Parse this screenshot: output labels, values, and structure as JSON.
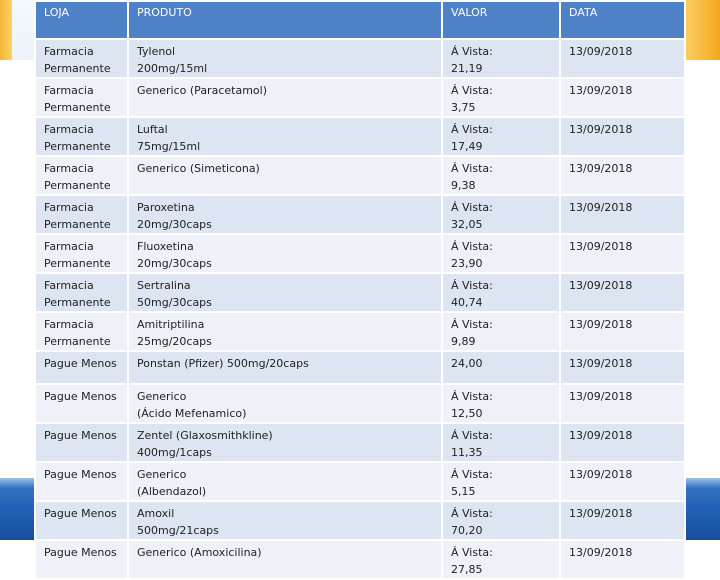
{
  "table": {
    "headers": [
      "LOJA",
      "PRODUTO",
      "VALOR",
      "DATA"
    ],
    "rows": [
      {
        "loja": [
          "Farmacia",
          "Permanente"
        ],
        "produto": [
          "Tylenol",
          "200mg/15ml"
        ],
        "valor": [
          "Á Vista:",
          "21,19"
        ],
        "data": "13/09/2018"
      },
      {
        "loja": [
          "Farmacia",
          "Permanente"
        ],
        "produto": [
          "Generico (Paracetamol)"
        ],
        "valor": [
          "Á Vista:",
          "3,75"
        ],
        "data": "13/09/2018"
      },
      {
        "loja": [
          "Farmacia",
          "Permanente"
        ],
        "produto": [
          "Luftal",
          "75mg/15ml"
        ],
        "valor": [
          "Á Vista:",
          "17,49"
        ],
        "data": "13/09/2018"
      },
      {
        "loja": [
          "Farmacia",
          "Permanente"
        ],
        "produto": [
          "Generico (Simeticona)"
        ],
        "valor": [
          "Á Vista:",
          "9,38"
        ],
        "data": "13/09/2018"
      },
      {
        "loja": [
          "Farmacia",
          "Permanente"
        ],
        "produto": [
          "Paroxetina",
          "20mg/30caps"
        ],
        "valor": [
          "Á Vista:",
          "32,05"
        ],
        "data": "13/09/2018"
      },
      {
        "loja": [
          "Farmacia",
          "Permanente"
        ],
        "produto": [
          "Fluoxetina",
          "20mg/30caps"
        ],
        "valor": [
          "Á Vista:",
          "23,90"
        ],
        "data": "13/09/2018"
      },
      {
        "loja": [
          "Farmacia",
          "Permanente"
        ],
        "produto": [
          "Sertralina",
          "50mg/30caps"
        ],
        "valor": [
          "Á Vista:",
          "40,74"
        ],
        "data": "13/09/2018"
      },
      {
        "loja": [
          "Farmacia",
          "Permanente"
        ],
        "produto": [
          "Amitriptilina",
          "25mg/20caps"
        ],
        "valor": [
          "Á Vista:",
          "9,89"
        ],
        "data": "13/09/2018"
      },
      {
        "loja": [
          "Pague Menos"
        ],
        "produto": [
          "Ponstan (Pfizer) 500mg/20caps"
        ],
        "valor": [
          "",
          "24,00"
        ],
        "data": "13/09/2018"
      },
      {
        "loja": [
          "Pague Menos"
        ],
        "produto": [
          "Generico",
          "(Ácido Mefenamico)"
        ],
        "valor": [
          "Á Vista:",
          "12,50"
        ],
        "data": "13/09/2018"
      },
      {
        "loja": [
          "Pague Menos"
        ],
        "produto": [
          "Zentel (Glaxosmithkline)",
          "400mg/1caps"
        ],
        "valor": [
          "Á Vista:",
          "11,35"
        ],
        "data": "13/09/2018"
      },
      {
        "loja": [
          "Pague Menos"
        ],
        "produto": [
          "Generico",
          "(Albendazol)"
        ],
        "valor": [
          "Á Vista:",
          "5,15"
        ],
        "data": "13/09/2018"
      },
      {
        "loja": [
          "Pague Menos"
        ],
        "produto": [
          " Amoxil",
          "500mg/21caps"
        ],
        "valor": [
          "Á Vista:",
          "70,20"
        ],
        "data": "13/09/2018"
      },
      {
        "loja": [
          "Pague Menos"
        ],
        "produto": [
          "Generico (Amoxicilina)"
        ],
        "valor": [
          "Á Vista:",
          "27,85"
        ],
        "data": "13/09/2018"
      }
    ]
  }
}
